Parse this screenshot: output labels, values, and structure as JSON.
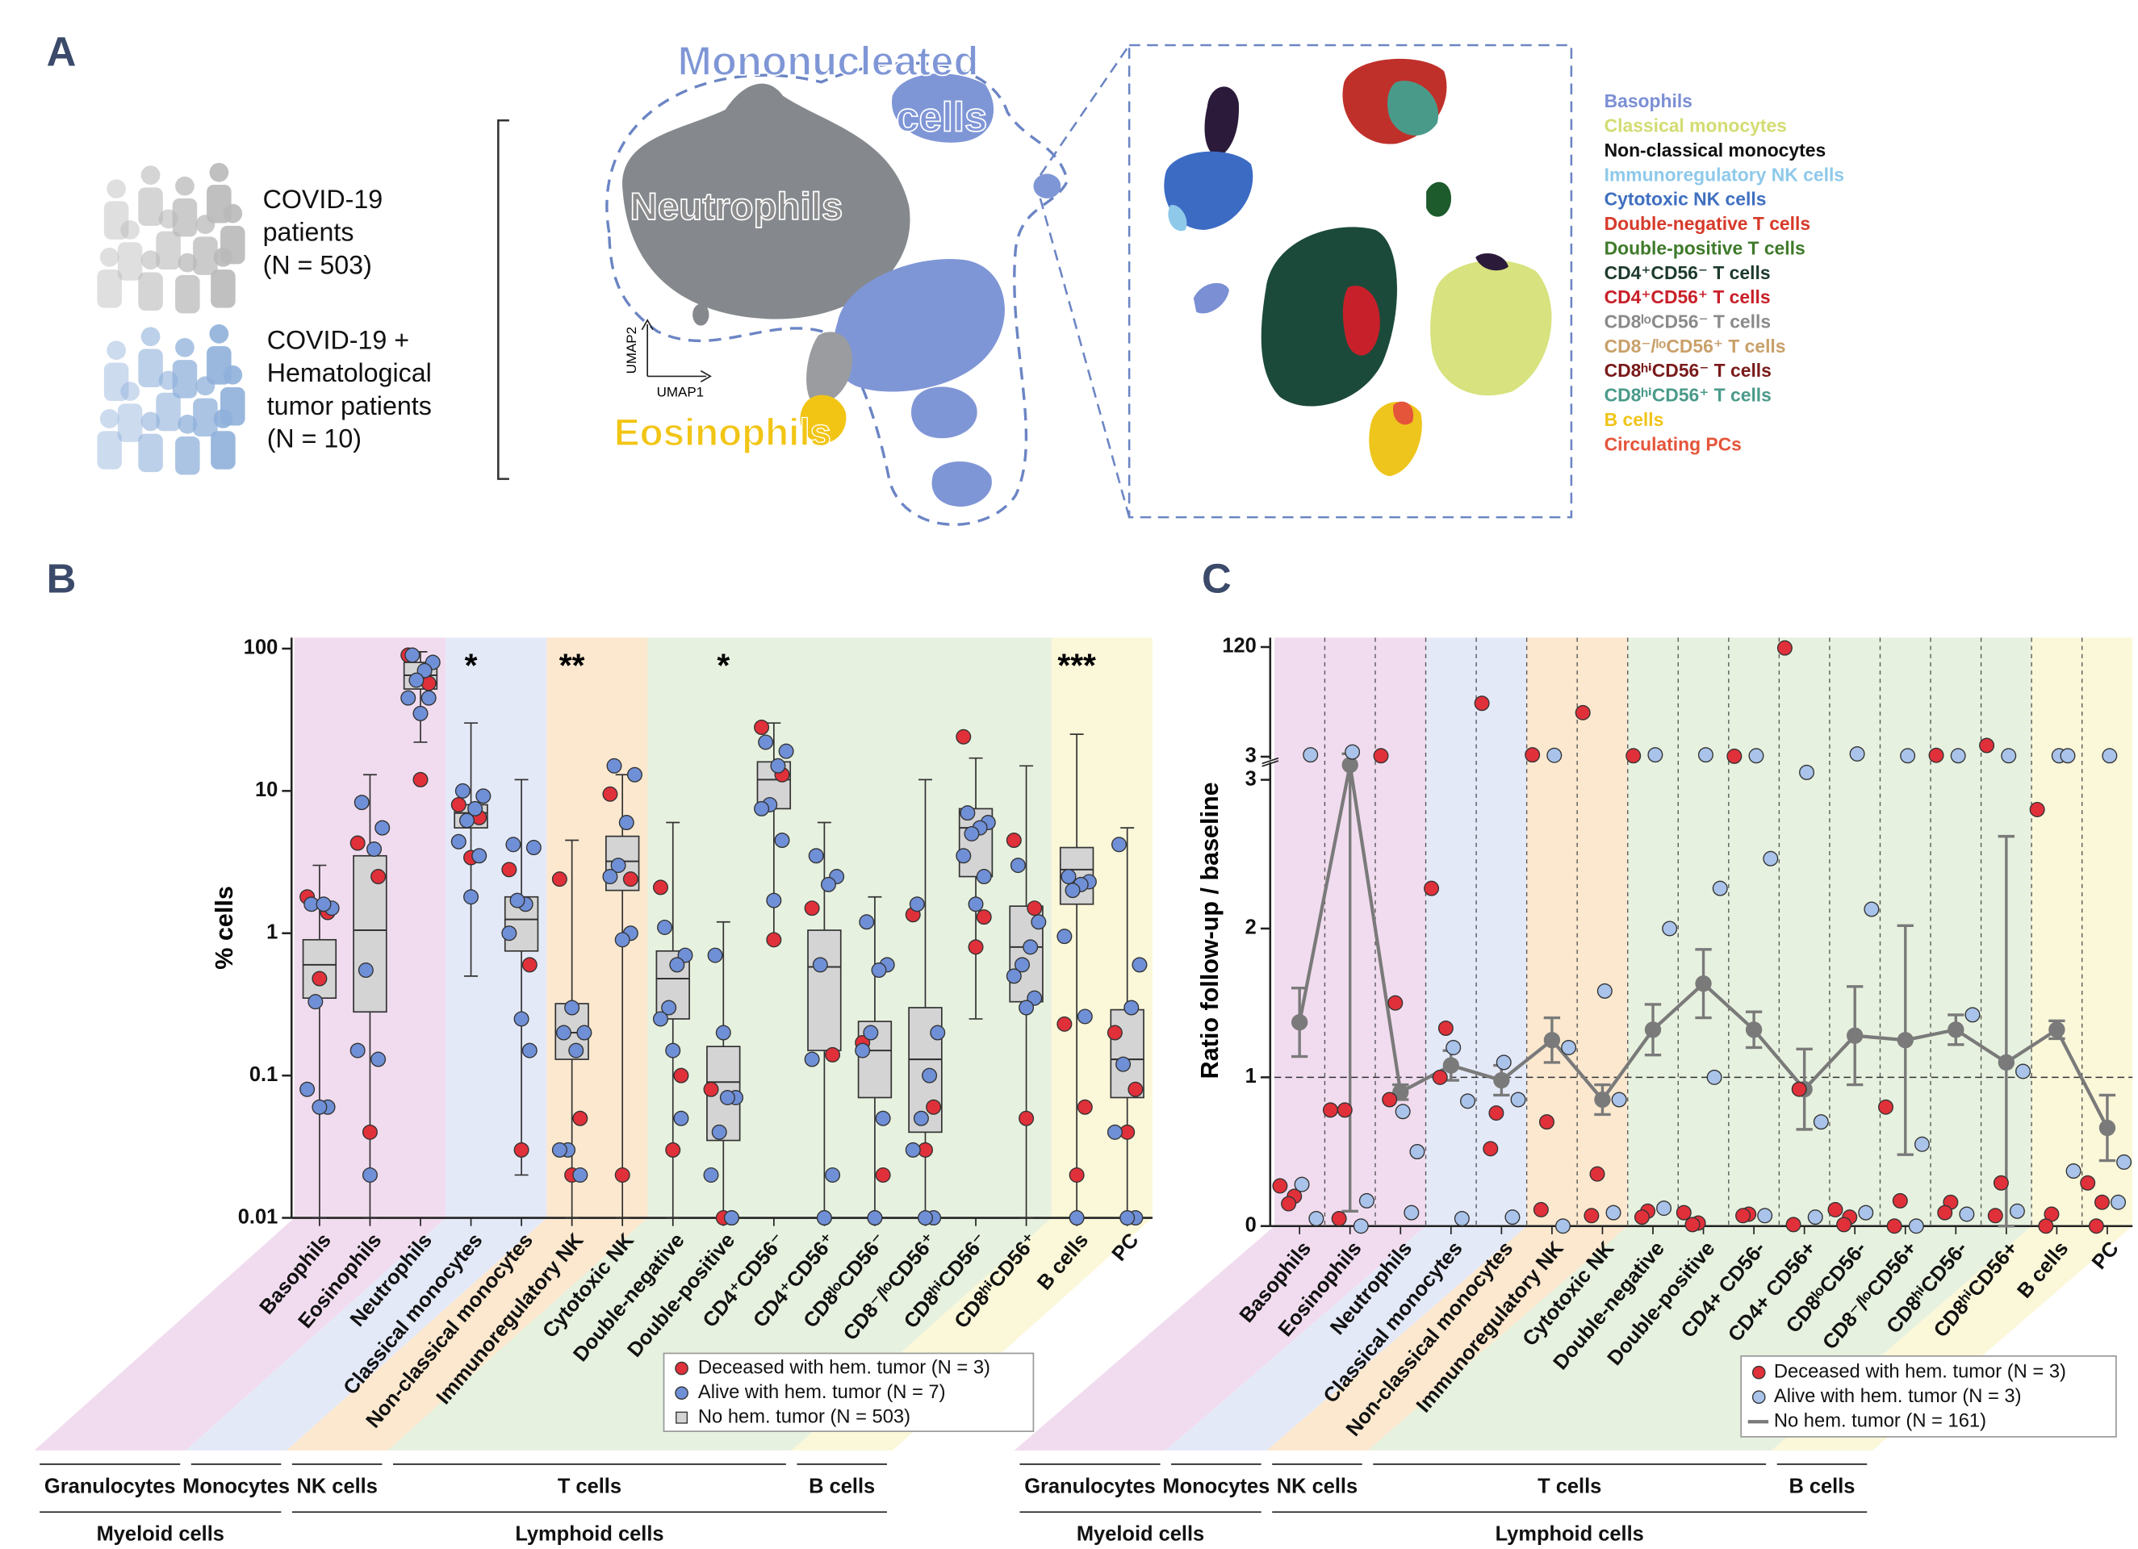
{
  "panel_labels": [
    "A",
    "B",
    "C"
  ],
  "panel_a": {
    "cohorts": [
      {
        "lines": [
          "COVID-19",
          "patients",
          "(N = 503)"
        ],
        "color": "#b9b9b9"
      },
      {
        "lines": [
          "COVID-19 +",
          "Hematological",
          "tumor patients",
          "(N = 10)"
        ],
        "color": "#8fb0da"
      }
    ],
    "umap_labels": {
      "mononucleated": [
        "Mononucleated",
        "cells"
      ],
      "neutrophils": "Neutrophils",
      "eosinophils": "Eosinophils",
      "x_axis": "UMAP1",
      "y_axis": "UMAP2"
    },
    "legend": [
      {
        "name": "Basophils",
        "color": "#7b8fd4"
      },
      {
        "name": "Classical monocytes",
        "color": "#d3dc72"
      },
      {
        "name": "Non-classical monocytes",
        "color": "#111111"
      },
      {
        "name": "Immunoregulatory NK cells",
        "color": "#8ec9ea"
      },
      {
        "name": "Cytotoxic NK cells",
        "color": "#3f6fbf"
      },
      {
        "name": "Double-negative T cells",
        "color": "#d73a2a"
      },
      {
        "name": "Double-positive T cells",
        "color": "#3f7a2a"
      },
      {
        "name": "CD4⁺CD56⁻ T cells",
        "color": "#1d3b2c"
      },
      {
        "name": "CD4⁺CD56⁺ T cells",
        "color": "#c8202a"
      },
      {
        "name": "CD8ˡᵒCD56⁻ T cells",
        "color": "#8a8a8a"
      },
      {
        "name": "CD8⁻/ˡᵒCD56⁺ T cells",
        "color": "#c9a06a"
      },
      {
        "name": "CD8ʰⁱCD56⁻ T cells",
        "color": "#7a1a1a"
      },
      {
        "name": "CD8ʰⁱCD56⁺ T cells",
        "color": "#4a9a8a"
      },
      {
        "name": "B cells",
        "color": "#f0c419"
      },
      {
        "name": "Circulating PCs",
        "color": "#e4553a"
      }
    ]
  },
  "cell_groups": [
    {
      "label": "Granulocytes",
      "color": "#f1dcef",
      "categories": [
        "Basophils",
        "Eosinophils",
        "Neutrophils"
      ]
    },
    {
      "label": "Monocytes",
      "color": "#e4e9f8",
      "categories": [
        "Classical monocytes",
        "Non-classical monocytes"
      ]
    },
    {
      "label": "NK cells",
      "color": "#fbe8cf",
      "categories": [
        "Immunoregulatory NK",
        "Cytotoxic NK"
      ]
    },
    {
      "label": "T cells",
      "color": "#e7f1df",
      "categories": [
        "Double-negative",
        "Double-positive",
        "CD4⁺CD56⁻",
        "CD4⁺CD56⁺",
        "CD8ˡᵒCD56⁻",
        "CD8⁻/ˡᵒCD56⁺",
        "CD8ʰⁱCD56⁻",
        "CD8ʰⁱCD56⁺"
      ]
    },
    {
      "label": "B cells",
      "color": "#fbf7d9",
      "categories": [
        "B cells",
        "PC"
      ]
    }
  ],
  "lineages": [
    {
      "label": "Myeloid cells",
      "groups": [
        "Granulocytes",
        "Monocytes"
      ]
    },
    {
      "label": "Lymphoid cells",
      "groups": [
        "NK cells",
        "T cells",
        "B cells"
      ]
    }
  ],
  "chart_data": [
    {
      "type": "box",
      "y_label": "% cells",
      "log_scale": true,
      "ylim": [
        0.01,
        100
      ],
      "yticks": [
        0.01,
        0.1,
        1,
        10,
        100
      ],
      "categories": [
        "Basophils",
        "Eosinophils",
        "Neutrophils",
        "Classical monocytes",
        "Non-classical monocytes",
        "Immunoregulatory NK",
        "Cytotoxic NK",
        "Double-negative",
        "Double-positive",
        "CD4⁺CD56⁻",
        "CD4⁺CD56⁺",
        "CD8ˡᵒCD56⁻",
        "CD8⁻/ˡᵒCD56⁺",
        "CD8ʰⁱCD56⁻",
        "CD8ʰⁱCD56⁺",
        "B cells",
        "PC"
      ],
      "significance": [
        null,
        null,
        null,
        "*",
        null,
        "**",
        null,
        null,
        "*",
        null,
        null,
        null,
        null,
        null,
        null,
        "***",
        null
      ],
      "boxes": {
        "name": "No hem. tumor (N = 503)",
        "color": "#d4d4d4",
        "min": [
          0.01,
          0.01,
          22,
          0.5,
          0.02,
          0.01,
          0.01,
          0.01,
          0.01,
          0.9,
          0.01,
          0.01,
          0.01,
          0.25,
          0.01,
          0.01,
          0.01
        ],
        "q1": [
          0.35,
          0.28,
          52,
          5.5,
          0.75,
          0.13,
          2.0,
          0.25,
          0.035,
          7.5,
          0.15,
          0.07,
          0.04,
          2.5,
          0.33,
          1.6,
          0.07
        ],
        "median": [
          0.6,
          1.05,
          65,
          7,
          1.25,
          0.2,
          3.2,
          0.48,
          0.09,
          12,
          0.58,
          0.15,
          0.13,
          5.5,
          0.8,
          2.8,
          0.13
        ],
        "q3": [
          0.9,
          3.5,
          80,
          8,
          1.8,
          0.32,
          4.8,
          0.75,
          0.16,
          16,
          1.05,
          0.24,
          0.3,
          7.5,
          1.55,
          4.0,
          0.29
        ],
        "max": [
          3,
          13,
          95,
          30,
          12,
          4.5,
          13,
          6,
          1.2,
          30,
          6,
          1.8,
          12,
          17,
          15,
          25,
          5.5
        ]
      },
      "series": [
        {
          "name": "Deceased with hem. tumor (N = 3)",
          "color": "#e0303a",
          "values": [
            [
              1.8,
              1.4,
              0.48
            ],
            [
              4.3,
              2.5,
              0.04
            ],
            [
              90,
              57,
              12
            ],
            [
              8,
              6.5,
              3.4
            ],
            [
              2.8,
              0.6,
              0.03
            ],
            [
              2.4,
              0.05,
              0.02
            ],
            [
              9.5,
              2.4,
              0.02
            ],
            [
              2.1,
              0.1,
              0.03
            ],
            [
              0.08,
              0.01,
              0.01
            ],
            [
              28,
              13,
              0.9
            ],
            [
              1.5,
              0.14,
              0.01
            ],
            [
              0.17,
              0.02,
              0.01
            ],
            [
              1.35,
              0.06,
              0.03
            ],
            [
              24,
              1.3,
              0.8
            ],
            [
              4.5,
              1.5,
              0.05
            ],
            [
              0.23,
              0.06,
              0.02
            ],
            [
              0.2,
              0.08,
              0.04
            ]
          ]
        },
        {
          "name": "Alive with hem. tumor (N = 7)",
          "color": "#6f8fd6",
          "values": [
            [
              1.6,
              1.5,
              1.6,
              0.33,
              0.08,
              0.06,
              0.06
            ],
            [
              8.3,
              5.5,
              3.9,
              0.55,
              0.15,
              0.13,
              0.02
            ],
            [
              90,
              80,
              70,
              60,
              45,
              45,
              35
            ],
            [
              10,
              9.2,
              7.5,
              6.2,
              4.4,
              3.5,
              1.8
            ],
            [
              4.2,
              4.0,
              1.6,
              1.7,
              1.0,
              0.15,
              0.25
            ],
            [
              0.2,
              0.2,
              0.15,
              0.03,
              0.03,
              0.02,
              0.3
            ],
            [
              15,
              13,
              6,
              3.0,
              2.5,
              1.0,
              0.9
            ],
            [
              1.1,
              0.7,
              0.6,
              0.3,
              0.25,
              0.05,
              0.15
            ],
            [
              0.7,
              0.07,
              0.07,
              0.04,
              0.02,
              0.01,
              0.2
            ],
            [
              22,
              19,
              15,
              8,
              7.5,
              4.5,
              1.7
            ],
            [
              3.5,
              2.5,
              2.2,
              0.6,
              0.13,
              0.02,
              0.01
            ],
            [
              1.2,
              0.6,
              0.55,
              0.2,
              0.15,
              0.05,
              0.01
            ],
            [
              1.6,
              0.2,
              0.1,
              0.05,
              0.03,
              0.01,
              0.01
            ],
            [
              7,
              6,
              5.5,
              5,
              3.5,
              2.5,
              1.6
            ],
            [
              3,
              1.2,
              0.8,
              0.6,
              0.5,
              0.35,
              0.3
            ],
            [
              2.5,
              2.3,
              2.2,
              2.0,
              0.95,
              0.26,
              0.01
            ],
            [
              4.2,
              0.6,
              0.3,
              0.12,
              0.04,
              0.01,
              0.01
            ]
          ]
        }
      ]
    },
    {
      "type": "line_dots",
      "y_label": "Ratio follow-up / baseline",
      "ylim": [
        0,
        3.1
      ],
      "yticks": [
        0,
        1,
        2,
        3
      ],
      "upper_ylim": [
        3,
        130
      ],
      "upper_yticks": [
        3,
        120
      ],
      "reference_line": 1,
      "categories": [
        "Basophils",
        "Eosinophils",
        "Neutrophils",
        "Classical monocytes",
        "Non-classical monocytes",
        "Immunoregulatory NK",
        "Cytotoxic NK",
        "Double-negative",
        "Double-positive",
        "CD4+ CD56-",
        "CD4+ CD56+",
        "CD8ˡᵒCD56-",
        "CD8⁻/ˡᵒCD56+",
        "CD8ʰⁱCD56-",
        "CD8ʰⁱCD56+",
        "B cells",
        "PC"
      ],
      "line": {
        "name": "No hem. tumor (N = 161)",
        "color": "#7a7a7a",
        "values": [
          1.37,
          3.1,
          0.9,
          1.08,
          0.98,
          1.25,
          0.85,
          1.32,
          1.63,
          1.32,
          0.92,
          1.28,
          1.25,
          1.32,
          1.1,
          1.32,
          0.66
        ],
        "errors": [
          0.23,
          3.0,
          0.05,
          0.1,
          0.1,
          0.15,
          0.1,
          0.17,
          0.23,
          0.12,
          0.27,
          0.33,
          0.77,
          0.1,
          1.52,
          0.06,
          0.22
        ]
      },
      "series": [
        {
          "name": "Deceased with hem. tumor (N = 3)",
          "color": "#e0303a",
          "values": [
            [
              0.27,
              0.2,
              0.15
            ],
            [
              0.78,
              0.78,
              0.05
            ],
            [
              4,
              1.5,
              0.85
            ],
            [
              2.27,
              1.33,
              1.0
            ],
            [
              60,
              0.76,
              0.52
            ],
            [
              5,
              0.7,
              0.11
            ],
            [
              50,
              0.35,
              0.07
            ],
            [
              4,
              0.1,
              0.06
            ],
            [
              0.09,
              0.02,
              0.01
            ],
            [
              3.5,
              0.08,
              0.07
            ],
            [
              119,
              0.92,
              0.01
            ],
            [
              0.11,
              0.06,
              0.01
            ],
            [
              0.8,
              0.17,
              0
            ],
            [
              4.5,
              0.16,
              0.09
            ],
            [
              15,
              0.29,
              0.07
            ],
            [
              2.8,
              0.08,
              0
            ],
            [
              0.29,
              0.16,
              0
            ]
          ]
        },
        {
          "name": "Alive with hem. tumor (N = 3)",
          "color": "#a9c3ea",
          "values": [
            [
              0.28,
              0.05,
              5
            ],
            [
              8,
              0.17,
              0
            ],
            [
              0.77,
              0.5,
              0.09
            ],
            [
              1.2,
              0.84,
              0.05
            ],
            [
              1.1,
              0.85,
              0.06
            ],
            [
              4.5,
              1.2,
              0
            ],
            [
              1.58,
              0.85,
              0.09
            ],
            [
              5,
              2.0,
              0.12
            ],
            [
              5,
              2.27,
              1.0
            ],
            [
              4,
              2.47,
              0.07
            ],
            [
              3.05,
              0.7,
              0.06
            ],
            [
              6,
              2.13,
              0.09
            ],
            [
              4,
              0.55,
              0
            ],
            [
              4,
              1.42,
              0.08
            ],
            [
              4,
              1.04,
              0.1
            ],
            [
              4,
              0.37,
              4
            ],
            [
              4,
              0.43,
              0.16
            ]
          ]
        }
      ]
    }
  ]
}
